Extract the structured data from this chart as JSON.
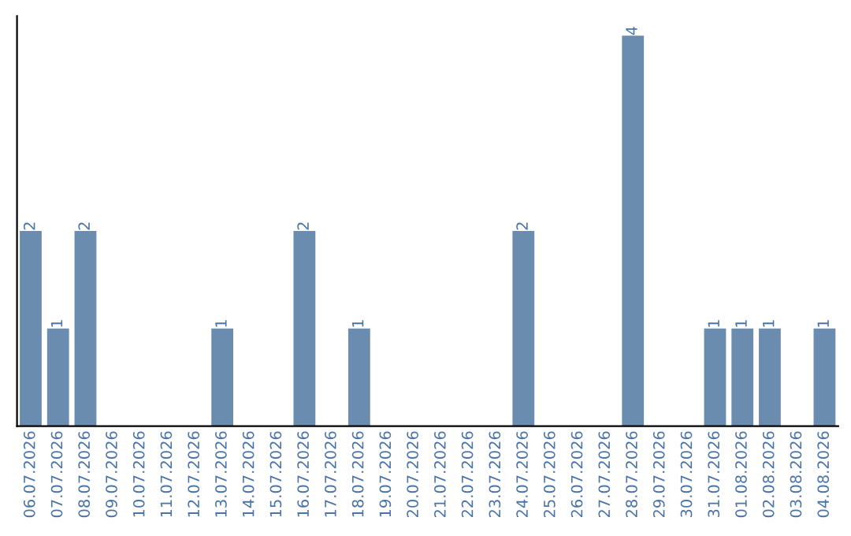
{
  "chart_data": {
    "type": "bar",
    "categories": [
      "06.07.2026",
      "07.07.2026",
      "08.07.2026",
      "09.07.2026",
      "10.07.2026",
      "11.07.2026",
      "12.07.2026",
      "13.07.2026",
      "14.07.2026",
      "15.07.2026",
      "16.07.2026",
      "17.07.2026",
      "18.07.2026",
      "19.07.2026",
      "20.07.2026",
      "21.07.2026",
      "22.07.2026",
      "23.07.2026",
      "24.07.2026",
      "25.07.2026",
      "26.07.2026",
      "27.07.2026",
      "28.07.2026",
      "29.07.2026",
      "30.07.2026",
      "31.07.2026",
      "01.08.2026",
      "02.08.2026",
      "03.08.2026",
      "04.08.2026"
    ],
    "values": [
      2,
      1,
      2,
      0,
      0,
      0,
      0,
      1,
      0,
      0,
      2,
      0,
      1,
      0,
      0,
      0,
      0,
      0,
      2,
      0,
      0,
      0,
      4,
      0,
      0,
      1,
      1,
      1,
      0,
      1
    ],
    "value_labels": [
      "2",
      "1",
      "2",
      null,
      null,
      null,
      null,
      "1",
      null,
      null,
      "2",
      null,
      "1",
      null,
      null,
      null,
      null,
      null,
      "2",
      null,
      null,
      null,
      "4",
      null,
      null,
      "1",
      "1",
      "1",
      null,
      "1"
    ],
    "color": "#6a8caf",
    "tick_labels": "x",
    "grid": false,
    "legend": false
  }
}
